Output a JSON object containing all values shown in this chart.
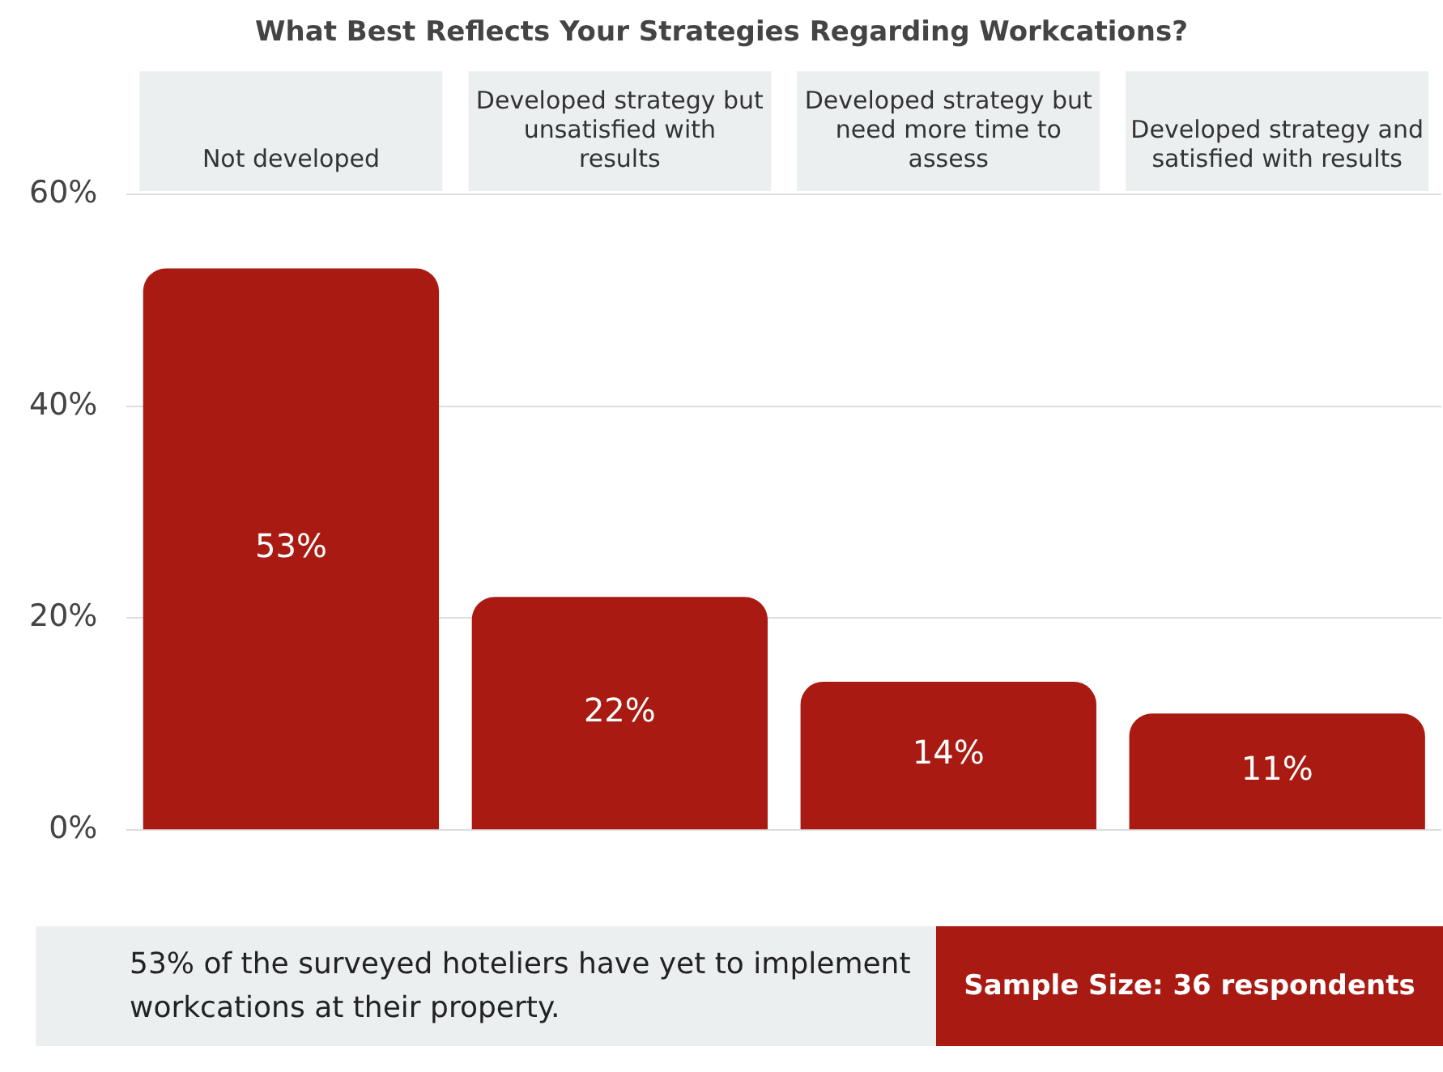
{
  "chart_data": {
    "type": "bar",
    "title": "What Best Reflects Your Strategies Regarding Workcations?",
    "categories": [
      "Not developed",
      "Developed strategy but unsatisfied with results",
      "Developed strategy but need more time to assess",
      "Developed strategy and satisfied with results"
    ],
    "values": [
      53,
      22,
      14,
      11
    ],
    "value_labels": [
      "53%",
      "22%",
      "14%",
      "11%"
    ],
    "color": "#a91b12",
    "ylim": [
      0,
      60
    ],
    "yticks": [
      {
        "value": 0,
        "label": "0%"
      },
      {
        "value": 20,
        "label": "20%"
      },
      {
        "value": 40,
        "label": "40%"
      },
      {
        "value": 60,
        "label": "60%"
      }
    ],
    "grid": "y",
    "legend": false,
    "annotations": [
      "53% of the surveyed hoteliers have yet to implement workcations at their property.",
      "Sample Size: 36 respondents"
    ]
  }
}
